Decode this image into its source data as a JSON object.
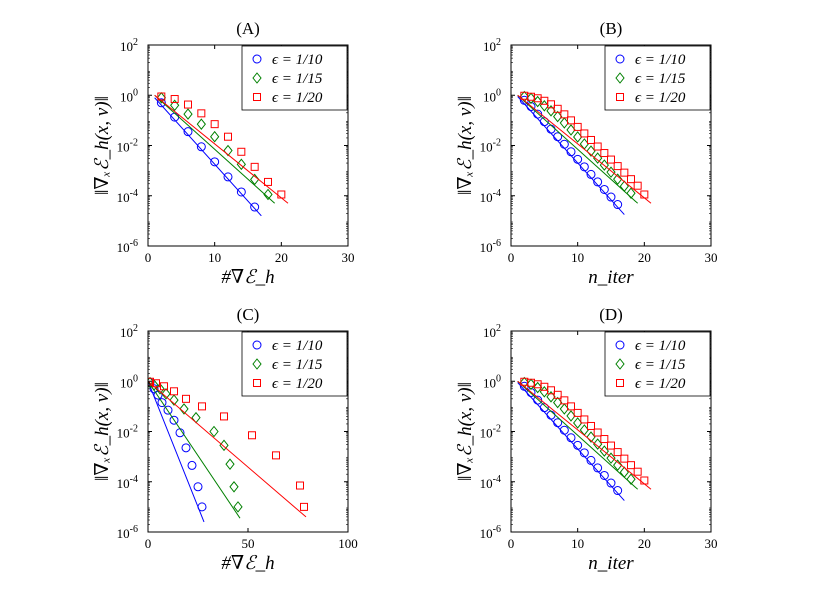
{
  "chart_data": [
    {
      "panel": "A",
      "type": "line",
      "title": "(A)",
      "xlabel": "#∇ℰ_h",
      "ylabel": "‖∇ₓℰ_h(x, v)‖",
      "xlim": [
        0,
        30
      ],
      "xticks": [
        0,
        10,
        20,
        30
      ],
      "ylim_log10": [
        -6,
        2
      ],
      "yticks": [
        {
          "base": "10",
          "exp": "2",
          "log": 2
        },
        {
          "base": "10",
          "exp": "0",
          "log": 0
        },
        {
          "base": "10",
          "exp": "-2",
          "log": -2
        },
        {
          "base": "10",
          "exp": "-4",
          "log": -4
        },
        {
          "base": "10",
          "exp": "-6",
          "log": -6
        }
      ],
      "legend": "top-right",
      "series": [
        {
          "name": "ϵ = 1/10",
          "color": "#0000ff",
          "marker": "circle",
          "x": [
            2,
            4,
            6,
            8,
            10,
            12,
            14,
            16
          ],
          "log_y": [
            -0.3,
            -0.87,
            -1.45,
            -2.05,
            -2.65,
            -3.25,
            -3.85,
            -4.45
          ],
          "line_x": [
            1,
            17
          ],
          "line_log_y": [
            -0.1,
            -4.8
          ]
        },
        {
          "name": "ϵ = 1/15",
          "color": "#008000",
          "marker": "diamond",
          "x": [
            2,
            4,
            6,
            8,
            10,
            12,
            14,
            16,
            18
          ],
          "log_y": [
            -0.1,
            -0.4,
            -0.75,
            -1.15,
            -1.65,
            -2.2,
            -2.75,
            -3.35,
            -3.95
          ],
          "line_x": [
            1,
            19
          ],
          "line_log_y": [
            0,
            -4.3
          ]
        },
        {
          "name": "ϵ = 1/20",
          "color": "#ff0000",
          "marker": "square",
          "x": [
            2,
            4,
            6,
            8,
            10,
            12,
            14,
            16,
            18,
            20
          ],
          "log_y": [
            -0.05,
            -0.15,
            -0.37,
            -0.72,
            -1.15,
            -1.65,
            -2.25,
            -2.85,
            -3.45,
            -3.95
          ],
          "line_x": [
            1,
            21
          ],
          "line_log_y": [
            0,
            -4.3
          ]
        }
      ]
    },
    {
      "panel": "B",
      "type": "line",
      "title": "(B)",
      "xlabel": "n_iter",
      "ylabel": "‖∇ₓℰ_h(x, v)‖",
      "xlim": [
        0,
        30
      ],
      "xticks": [
        0,
        10,
        20,
        30
      ],
      "ylim_log10": [
        -6,
        2
      ],
      "yticks": [
        {
          "base": "10",
          "exp": "2",
          "log": 2
        },
        {
          "base": "10",
          "exp": "0",
          "log": 0
        },
        {
          "base": "10",
          "exp": "-2",
          "log": -2
        },
        {
          "base": "10",
          "exp": "-4",
          "log": -4
        },
        {
          "base": "10",
          "exp": "-6",
          "log": -6
        }
      ],
      "legend": "top-right",
      "series": [
        {
          "name": "ϵ = 1/10",
          "color": "#0000ff",
          "marker": "circle",
          "x": [
            2,
            3,
            4,
            5,
            6,
            7,
            8,
            9,
            10,
            11,
            12,
            13,
            14,
            15,
            16
          ],
          "log_y": [
            -0.2,
            -0.45,
            -0.75,
            -1.05,
            -1.35,
            -1.65,
            -1.95,
            -2.25,
            -2.55,
            -2.85,
            -3.15,
            -3.45,
            -3.75,
            -4.05,
            -4.35
          ],
          "line_x": [
            1,
            17
          ],
          "line_log_y": [
            -0.05,
            -4.75
          ]
        },
        {
          "name": "ϵ = 1/15",
          "color": "#008000",
          "marker": "diamond",
          "x": [
            2,
            3,
            4,
            5,
            6,
            7,
            8,
            9,
            10,
            11,
            12,
            13,
            14,
            15,
            16,
            17,
            18
          ],
          "log_y": [
            -0.05,
            -0.12,
            -0.25,
            -0.42,
            -0.62,
            -0.85,
            -1.1,
            -1.38,
            -1.66,
            -1.94,
            -2.22,
            -2.5,
            -2.78,
            -3.06,
            -3.34,
            -3.62,
            -3.9
          ],
          "line_x": [
            1,
            19
          ],
          "line_log_y": [
            0,
            -4.3
          ]
        },
        {
          "name": "ϵ = 1/20",
          "color": "#ff0000",
          "marker": "square",
          "x": [
            2,
            3,
            4,
            5,
            6,
            7,
            8,
            9,
            10,
            11,
            12,
            13,
            14,
            15,
            16,
            17,
            18,
            19,
            20
          ],
          "log_y": [
            -0.02,
            -0.06,
            -0.12,
            -0.22,
            -0.36,
            -0.54,
            -0.76,
            -1.0,
            -1.26,
            -1.52,
            -1.78,
            -2.04,
            -2.3,
            -2.56,
            -2.82,
            -3.08,
            -3.34,
            -3.6,
            -3.95
          ],
          "line_x": [
            1,
            21
          ],
          "line_log_y": [
            0,
            -4.3
          ]
        }
      ]
    },
    {
      "panel": "C",
      "type": "line",
      "title": "(C)",
      "xlabel": "#∇ℰ_h",
      "ylabel": "‖∇ₓℰ_h(x, v)‖",
      "xlim": [
        0,
        100
      ],
      "xticks": [
        0,
        50,
        100
      ],
      "ylim_log10": [
        -6,
        2
      ],
      "yticks": [
        {
          "base": "10",
          "exp": "2",
          "log": 2
        },
        {
          "base": "10",
          "exp": "0",
          "log": 0
        },
        {
          "base": "10",
          "exp": "-2",
          "log": -2
        },
        {
          "base": "10",
          "exp": "-4",
          "log": -4
        },
        {
          "base": "10",
          "exp": "-6",
          "log": -6
        }
      ],
      "legend": "top-right",
      "series": [
        {
          "name": "ϵ = 1/10",
          "color": "#0000ff",
          "marker": "circle",
          "x": [
            1,
            3,
            5,
            7,
            10,
            13,
            16,
            19,
            22,
            25,
            27
          ],
          "log_y": [
            -0.05,
            -0.3,
            -0.55,
            -0.85,
            -1.15,
            -1.55,
            -2.05,
            -2.65,
            -3.35,
            -4.2,
            -5.0
          ],
          "line_x": [
            0,
            28
          ],
          "line_log_y": [
            0,
            -5.6
          ]
        },
        {
          "name": "ϵ = 1/15",
          "color": "#008000",
          "marker": "diamond",
          "x": [
            1,
            3,
            6,
            9,
            13,
            18,
            24,
            33,
            38,
            41,
            43,
            45
          ],
          "log_y": [
            -0.05,
            -0.15,
            -0.3,
            -0.5,
            -0.75,
            -1.1,
            -1.45,
            -2.0,
            -2.55,
            -3.3,
            -4.2,
            -5.0
          ],
          "line_x": [
            0,
            46
          ],
          "line_log_y": [
            0,
            -5.45
          ]
        },
        {
          "name": "ϵ = 1/20",
          "color": "#ff0000",
          "marker": "square",
          "x": [
            1,
            4,
            8,
            13,
            19,
            27,
            38,
            52,
            64,
            76,
            78
          ],
          "log_y": [
            -0.02,
            -0.08,
            -0.2,
            -0.4,
            -0.7,
            -1.0,
            -1.4,
            -2.15,
            -2.95,
            -4.15,
            -5.0
          ],
          "line_x": [
            0,
            79
          ],
          "line_log_y": [
            0,
            -5.4
          ]
        }
      ]
    },
    {
      "panel": "D",
      "type": "line",
      "title": "(D)",
      "xlabel": "n_iter",
      "ylabel": "‖∇ₓℰ_h(x, v)‖",
      "xlim": [
        0,
        30
      ],
      "xticks": [
        0,
        10,
        20,
        30
      ],
      "ylim_log10": [
        -6,
        2
      ],
      "yticks": [
        {
          "base": "10",
          "exp": "2",
          "log": 2
        },
        {
          "base": "10",
          "exp": "0",
          "log": 0
        },
        {
          "base": "10",
          "exp": "-2",
          "log": -2
        },
        {
          "base": "10",
          "exp": "-4",
          "log": -4
        },
        {
          "base": "10",
          "exp": "-6",
          "log": -6
        }
      ],
      "legend": "top-right",
      "series": [
        {
          "name": "ϵ = 1/10",
          "color": "#0000ff",
          "marker": "circle",
          "x": [
            2,
            3,
            4,
            5,
            6,
            7,
            8,
            9,
            10,
            11,
            12,
            13,
            14,
            15,
            16
          ],
          "log_y": [
            -0.2,
            -0.45,
            -0.75,
            -1.05,
            -1.35,
            -1.65,
            -1.95,
            -2.25,
            -2.55,
            -2.85,
            -3.15,
            -3.45,
            -3.75,
            -4.05,
            -4.35
          ],
          "line_x": [
            1,
            17
          ],
          "line_log_y": [
            -0.05,
            -4.75
          ]
        },
        {
          "name": "ϵ = 1/15",
          "color": "#008000",
          "marker": "diamond",
          "x": [
            2,
            3,
            4,
            5,
            6,
            7,
            8,
            9,
            10,
            11,
            12,
            13,
            14,
            15,
            16,
            17,
            18
          ],
          "log_y": [
            -0.05,
            -0.12,
            -0.25,
            -0.42,
            -0.62,
            -0.85,
            -1.1,
            -1.38,
            -1.66,
            -1.94,
            -2.22,
            -2.5,
            -2.78,
            -3.06,
            -3.34,
            -3.62,
            -3.9
          ],
          "line_x": [
            1,
            19
          ],
          "line_log_y": [
            0,
            -4.3
          ]
        },
        {
          "name": "ϵ = 1/20",
          "color": "#ff0000",
          "marker": "square",
          "x": [
            2,
            3,
            4,
            5,
            6,
            7,
            8,
            9,
            10,
            11,
            12,
            13,
            14,
            15,
            16,
            17,
            18,
            19,
            20
          ],
          "log_y": [
            -0.02,
            -0.06,
            -0.12,
            -0.22,
            -0.36,
            -0.54,
            -0.76,
            -1.0,
            -1.26,
            -1.52,
            -1.78,
            -2.04,
            -2.3,
            -2.56,
            -2.82,
            -3.08,
            -3.34,
            -3.6,
            -3.95
          ],
          "line_x": [
            1,
            21
          ],
          "line_log_y": [
            0,
            -4.3
          ]
        }
      ]
    }
  ]
}
